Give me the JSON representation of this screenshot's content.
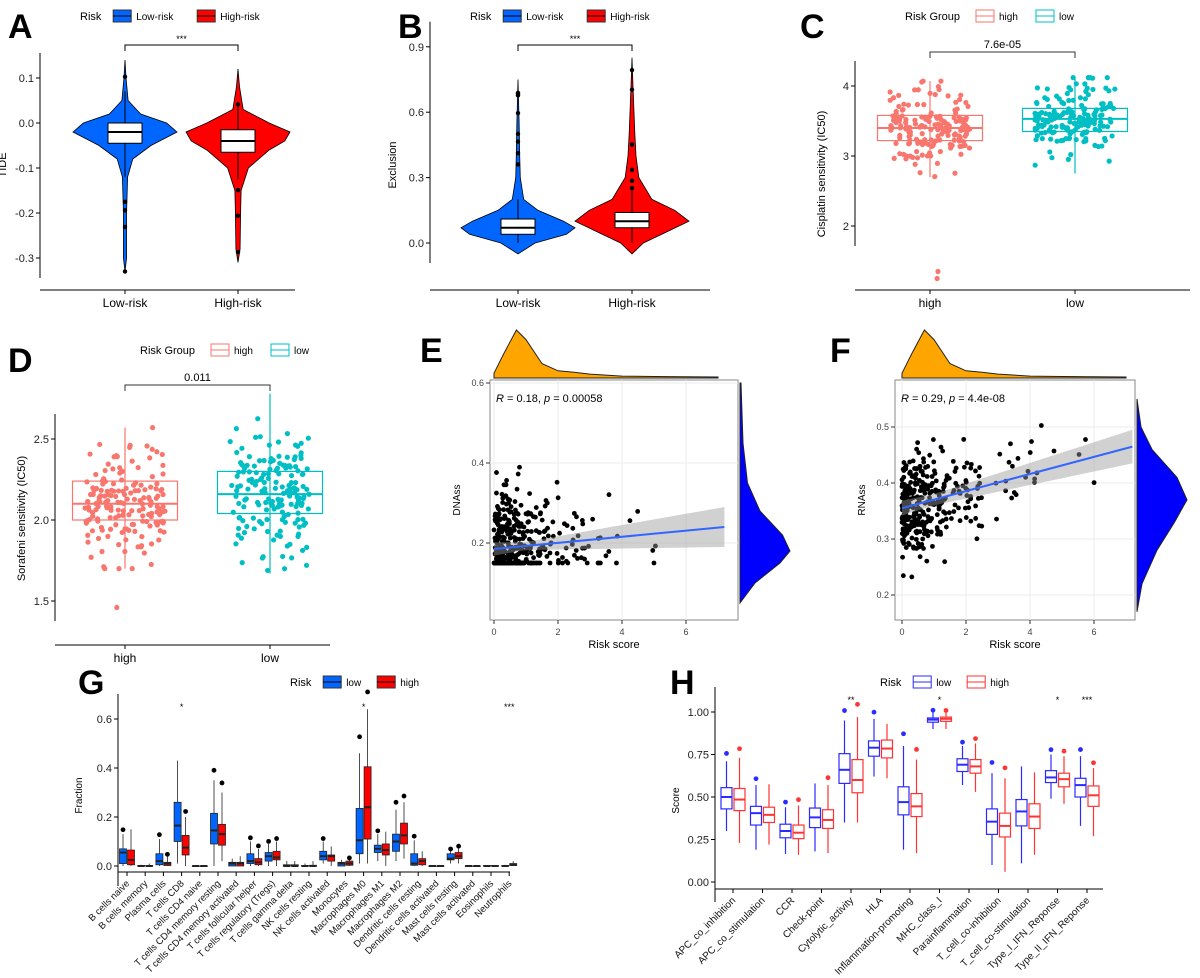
{
  "colors": {
    "low_risk": "#0066ff",
    "high_risk": "#ff0000",
    "group_high": "#f8766d",
    "group_low": "#00bfc4",
    "density_top": "#ffa500",
    "density_right": "#0000ff",
    "line": "#3366ff",
    "box_low_H": "#2b2bff",
    "box_high_H": "#ff3333"
  },
  "chart_data": [
    {
      "panel": "A",
      "type": "violin",
      "ylabel": "TIDE",
      "legend_title": "Risk",
      "legend": [
        "Low-risk",
        "High-risk"
      ],
      "categories": [
        "Low-risk",
        "High-risk"
      ],
      "yticks": [
        0.1,
        0.0,
        -0.1,
        -0.2,
        -0.3
      ],
      "yticklabels": [
        "0.1",
        "0.0",
        "-0.1",
        "-0.2",
        "-0.3"
      ],
      "significance": "***",
      "boxes": [
        {
          "min": -0.12,
          "q1": -0.045,
          "median": -0.02,
          "q3": 0.0,
          "max": 0.07
        },
        {
          "min": -0.125,
          "q1": -0.065,
          "median": -0.04,
          "q3": -0.015,
          "max": 0.04
        }
      ],
      "density": [
        [
          [
            -0.33,
            0
          ],
          [
            -0.3,
            0.03
          ],
          [
            -0.25,
            0.03
          ],
          [
            -0.2,
            0.03
          ],
          [
            -0.12,
            0.05
          ],
          [
            -0.08,
            0.15
          ],
          [
            -0.05,
            0.5
          ],
          [
            -0.02,
            1
          ],
          [
            0.0,
            0.8
          ],
          [
            0.02,
            0.3
          ],
          [
            0.05,
            0.06
          ],
          [
            0.1,
            0.02
          ],
          [
            0.14,
            0
          ]
        ],
        [
          [
            -0.31,
            0
          ],
          [
            -0.28,
            0.04
          ],
          [
            -0.2,
            0.05
          ],
          [
            -0.15,
            0.06
          ],
          [
            -0.1,
            0.2
          ],
          [
            -0.06,
            0.6
          ],
          [
            -0.04,
            0.9
          ],
          [
            -0.02,
            1
          ],
          [
            0.0,
            0.6
          ],
          [
            0.03,
            0.1
          ],
          [
            0.08,
            0.03
          ],
          [
            0.12,
            0
          ]
        ]
      ]
    },
    {
      "panel": "B",
      "type": "violin",
      "ylabel": "Exclusion",
      "legend_title": "Risk",
      "legend": [
        "Low-risk",
        "High-risk"
      ],
      "categories": [
        "Low-risk",
        "High-risk"
      ],
      "yticks": [
        0.9,
        0.6,
        0.3,
        0.0
      ],
      "yticklabels": [
        "0.9",
        "0.6",
        "0.3",
        "0.0"
      ],
      "significance": "***",
      "boxes": [
        {
          "min": 0.0,
          "q1": 0.04,
          "median": 0.07,
          "q3": 0.11,
          "max": 0.2
        },
        {
          "min": 0.0,
          "q1": 0.07,
          "median": 0.1,
          "q3": 0.14,
          "max": 0.25
        }
      ],
      "density": [
        [
          [
            -0.05,
            0
          ],
          [
            0,
            0.3
          ],
          [
            0.04,
            0.85
          ],
          [
            0.07,
            1
          ],
          [
            0.1,
            0.8
          ],
          [
            0.15,
            0.35
          ],
          [
            0.2,
            0.1
          ],
          [
            0.3,
            0.04
          ],
          [
            0.4,
            0.03
          ],
          [
            0.55,
            0.02
          ],
          [
            0.75,
            0
          ]
        ],
        [
          [
            -0.05,
            0
          ],
          [
            0,
            0.2
          ],
          [
            0.05,
            0.6
          ],
          [
            0.1,
            1
          ],
          [
            0.15,
            0.75
          ],
          [
            0.2,
            0.35
          ],
          [
            0.3,
            0.12
          ],
          [
            0.4,
            0.07
          ],
          [
            0.5,
            0.05
          ],
          [
            0.7,
            0.02
          ],
          [
            0.85,
            0
          ]
        ]
      ]
    },
    {
      "panel": "C",
      "type": "box",
      "ylabel": "Cisplatin sensitivity (IC50)",
      "legend_title": "Risk Group",
      "legend": [
        "high",
        "low"
      ],
      "categories": [
        "high",
        "low"
      ],
      "yticks": [
        4,
        3,
        2
      ],
      "yticklabels": [
        "4",
        "3",
        "2"
      ],
      "pvalue": "7.6e-05",
      "boxes": [
        {
          "min": 2.7,
          "q1": 3.22,
          "median": 3.4,
          "q3": 3.58,
          "max": 4.07,
          "outliers": [
            1.25,
            1.35
          ]
        },
        {
          "min": 2.75,
          "q1": 3.35,
          "median": 3.53,
          "q3": 3.68,
          "max": 4.12,
          "outliers": []
        }
      ]
    },
    {
      "panel": "D",
      "type": "box",
      "ylabel": "Sorafeni sensitivity (IC50)",
      "legend_title": "Risk Group",
      "legend": [
        "high",
        "low"
      ],
      "categories": [
        "high",
        "low"
      ],
      "yticks": [
        2.5,
        2.0,
        1.5
      ],
      "yticklabels": [
        "2.5",
        "2.0",
        "1.5"
      ],
      "pvalue": "0.011",
      "boxes": [
        {
          "min": 1.7,
          "q1": 2.0,
          "median": 2.1,
          "q3": 2.24,
          "max": 2.57,
          "outliers": [
            1.46
          ]
        },
        {
          "min": 1.67,
          "q1": 2.04,
          "median": 2.16,
          "q3": 2.3,
          "max": 2.78,
          "outliers": []
        }
      ]
    },
    {
      "panel": "E",
      "type": "scatter",
      "xlabel": "Risk score",
      "ylabel": "DNAss",
      "annotation_r": "R = 0.18, ",
      "annotation_p": "p = 0.00058",
      "xticks": [
        0,
        2,
        4,
        6
      ],
      "xticklabels": [
        "0",
        "2",
        "4",
        "6"
      ],
      "yticks": [
        0.6,
        0.4,
        0.2
      ],
      "yticklabels": [
        "0.6",
        "0.4",
        "0.2"
      ],
      "fit": {
        "x": [
          0,
          7.2
        ],
        "y": [
          0.185,
          0.24
        ],
        "ci": [
          0.01,
          0.05
        ]
      },
      "top_density": [
        [
          0,
          0.1
        ],
        [
          0.3,
          0.5
        ],
        [
          0.7,
          1
        ],
        [
          1,
          0.8
        ],
        [
          1.5,
          0.3
        ],
        [
          2,
          0.15
        ],
        [
          2.5,
          0.12
        ],
        [
          3,
          0.08
        ],
        [
          4,
          0.04
        ],
        [
          5,
          0.03
        ],
        [
          7,
          0.02
        ]
      ],
      "right_density": [
        [
          0.05,
          0
        ],
        [
          0.1,
          0.3
        ],
        [
          0.15,
          0.8
        ],
        [
          0.18,
          1
        ],
        [
          0.22,
          0.85
        ],
        [
          0.28,
          0.4
        ],
        [
          0.35,
          0.15
        ],
        [
          0.45,
          0.06
        ],
        [
          0.6,
          0.02
        ]
      ]
    },
    {
      "panel": "F",
      "type": "scatter",
      "xlabel": "Risk score",
      "ylabel": "RNAss",
      "annotation_r": "R = 0.29, ",
      "annotation_p": "p = 4.4e-08",
      "xticks": [
        0,
        2,
        4,
        6
      ],
      "xticklabels": [
        "0",
        "2",
        "4",
        "6"
      ],
      "yticks": [
        0.5,
        0.4,
        0.3,
        0.2
      ],
      "yticklabels": [
        "0.5",
        "0.4",
        "0.3",
        "0.2"
      ],
      "fit": {
        "x": [
          0,
          7.2
        ],
        "y": [
          0.355,
          0.465
        ],
        "ci": [
          0.01,
          0.03
        ]
      },
      "top_density": [
        [
          0,
          0.1
        ],
        [
          0.3,
          0.5
        ],
        [
          0.7,
          1
        ],
        [
          1,
          0.8
        ],
        [
          1.5,
          0.3
        ],
        [
          2,
          0.15
        ],
        [
          2.5,
          0.12
        ],
        [
          3,
          0.08
        ],
        [
          4,
          0.04
        ],
        [
          5,
          0.03
        ],
        [
          7,
          0.02
        ]
      ],
      "right_density": [
        [
          0.17,
          0
        ],
        [
          0.22,
          0.1
        ],
        [
          0.28,
          0.4
        ],
        [
          0.33,
          0.75
        ],
        [
          0.37,
          1
        ],
        [
          0.41,
          0.8
        ],
        [
          0.46,
          0.3
        ],
        [
          0.5,
          0.08
        ],
        [
          0.55,
          0
        ]
      ]
    },
    {
      "panel": "G",
      "type": "box",
      "ylabel": "Fraction",
      "legend_title": "Risk",
      "legend": [
        "low",
        "high"
      ],
      "yticks": [
        0.6,
        0.4,
        0.2,
        0.0
      ],
      "yticklabels": [
        "0.6",
        "0.4",
        "0.2",
        "0.0"
      ],
      "categories": [
        "B cells naive",
        "B cells memory",
        "Plasma cells",
        "T cells CD8",
        "T cells CD4 naive",
        "T cells CD4 memory resting",
        "T cells CD4 memory activated",
        "T cells follicular helper",
        "T cells regulatory (Tregs)",
        "T cells gamma delta",
        "NK cells resting",
        "NK cells activated",
        "Monocytes",
        "Macrophages M0",
        "Macrophages M1",
        "Macrophages M2",
        "Dendritic cells resting",
        "Dendritic cells activated",
        "Mast cells resting",
        "Mast cells activated",
        "Eosinophils",
        "Neutrophils"
      ],
      "significance": [
        "",
        "",
        "",
        "*",
        "",
        "",
        "",
        "",
        "",
        "",
        "",
        "",
        "",
        "*",
        "",
        "",
        "",
        "",
        "",
        "",
        "",
        "***"
      ],
      "low": [
        [
          0,
          0.01,
          0.055,
          0.07,
          0.13
        ],
        [
          0,
          0,
          0,
          0.002,
          0.005
        ],
        [
          0,
          0.005,
          0.02,
          0.05,
          0.11
        ],
        [
          0.01,
          0.1,
          0.165,
          0.26,
          0.43
        ],
        [
          0,
          0,
          0,
          0,
          0
        ],
        [
          0,
          0.09,
          0.145,
          0.215,
          0.35
        ],
        [
          0,
          0,
          0.01,
          0.015,
          0.03
        ],
        [
          0,
          0.01,
          0.02,
          0.05,
          0.1
        ],
        [
          0,
          0.02,
          0.04,
          0.055,
          0.09
        ],
        [
          0,
          0,
          0,
          0.005,
          0.02
        ],
        [
          0,
          0,
          0,
          0.002,
          0.01
        ],
        [
          0.01,
          0.025,
          0.04,
          0.06,
          0.1
        ],
        [
          0,
          0,
          0.01,
          0.015,
          0.025
        ],
        [
          0.01,
          0.05,
          0.105,
          0.235,
          0.46
        ],
        [
          0.02,
          0.055,
          0.07,
          0.085,
          0.13
        ],
        [
          0.02,
          0.06,
          0.1,
          0.13,
          0.23
        ],
        [
          0,
          0.003,
          0.01,
          0.05,
          0.105
        ],
        [
          0,
          0,
          0,
          0,
          0
        ],
        [
          0.01,
          0.025,
          0.03,
          0.05,
          0.065
        ],
        [
          0,
          0,
          0,
          0,
          0
        ],
        [
          0,
          0,
          0,
          0.002,
          0.004
        ],
        [
          0,
          0,
          0,
          0.002,
          0.005
        ]
      ],
      "high": [
        [
          0,
          0.005,
          0.025,
          0.065,
          0.15
        ],
        [
          0,
          0,
          0,
          0.002,
          0.01
        ],
        [
          0,
          0.002,
          0.01,
          0.015,
          0.04
        ],
        [
          0,
          0.045,
          0.075,
          0.125,
          0.2
        ],
        [
          0,
          0,
          0,
          0,
          0
        ],
        [
          0.02,
          0.085,
          0.13,
          0.17,
          0.3
        ],
        [
          0,
          0,
          0.01,
          0.015,
          0.04
        ],
        [
          0,
          0.005,
          0.015,
          0.03,
          0.07
        ],
        [
          0,
          0.025,
          0.035,
          0.06,
          0.1
        ],
        [
          0,
          0,
          0,
          0.005,
          0.02
        ],
        [
          0,
          0,
          0,
          0.003,
          0.02
        ],
        [
          0,
          0.02,
          0.04,
          0.045,
          0.08
        ],
        [
          0,
          0.003,
          0.01,
          0.02,
          0.03
        ],
        [
          0.01,
          0.11,
          0.24,
          0.405,
          0.64
        ],
        [
          0,
          0.045,
          0.065,
          0.09,
          0.14
        ],
        [
          0.03,
          0.09,
          0.125,
          0.175,
          0.26
        ],
        [
          0,
          0.005,
          0.02,
          0.03,
          0.06
        ],
        [
          0,
          0,
          0,
          0,
          0
        ],
        [
          0.01,
          0.03,
          0.04,
          0.055,
          0.075
        ],
        [
          0,
          0,
          0,
          0,
          0
        ],
        [
          0,
          0,
          0,
          0.002,
          0.004
        ],
        [
          0,
          0.002,
          0.005,
          0.01,
          0.02
        ]
      ]
    },
    {
      "panel": "H",
      "type": "box",
      "ylabel": "Score",
      "legend_title": "Risk",
      "legend": [
        "low",
        "high"
      ],
      "yticks": [
        1.0,
        0.75,
        0.5,
        0.25,
        0.0
      ],
      "yticklabels": [
        "1.00",
        "0.75",
        "0.50",
        "0.25",
        "0.00"
      ],
      "categories": [
        "APC_co_inhibition",
        "APC_co_stimulation",
        "CCR",
        "Check-point",
        "Cytolytic_activity",
        "HLA",
        "Inflammation-promoting",
        "MHC_class_I",
        "Parainflammation",
        "T_cell_co-inhibition",
        "T_cell_co-stimulation",
        "Type_I_IFN_Reponse",
        "Type_II_IFN_Reponse"
      ],
      "significance": [
        "",
        "",
        "",
        "",
        "**",
        "",
        "",
        "*",
        "",
        "",
        "",
        "*",
        "***"
      ],
      "low": [
        [
          0.3,
          0.43,
          0.5,
          0.555,
          0.71
        ],
        [
          0.19,
          0.335,
          0.405,
          0.445,
          0.57
        ],
        [
          0.165,
          0.26,
          0.3,
          0.34,
          0.44
        ],
        [
          0.18,
          0.32,
          0.38,
          0.435,
          0.58
        ],
        [
          0.35,
          0.58,
          0.66,
          0.755,
          0.95
        ],
        [
          0.62,
          0.74,
          0.79,
          0.83,
          0.96
        ],
        [
          0.19,
          0.395,
          0.47,
          0.56,
          0.8
        ],
        [
          0.9,
          0.94,
          0.955,
          0.965,
          1.0
        ],
        [
          0.57,
          0.65,
          0.69,
          0.725,
          0.8
        ],
        [
          0.1,
          0.28,
          0.355,
          0.43,
          0.64
        ],
        [
          0.11,
          0.33,
          0.415,
          0.485,
          0.68
        ],
        [
          0.49,
          0.585,
          0.615,
          0.655,
          0.75
        ],
        [
          0.33,
          0.5,
          0.57,
          0.61,
          0.74
        ]
      ],
      "high": [
        [
          0.23,
          0.42,
          0.485,
          0.55,
          0.73
        ],
        [
          0.22,
          0.35,
          0.395,
          0.44,
          0.575
        ],
        [
          0.16,
          0.255,
          0.29,
          0.335,
          0.45
        ],
        [
          0.17,
          0.315,
          0.365,
          0.425,
          0.57
        ],
        [
          0.35,
          0.525,
          0.6,
          0.72,
          0.97
        ],
        [
          0.61,
          0.73,
          0.785,
          0.835,
          0.93
        ],
        [
          0.17,
          0.385,
          0.445,
          0.52,
          0.72
        ],
        [
          0.9,
          0.945,
          0.96,
          0.97,
          1.0
        ],
        [
          0.53,
          0.64,
          0.68,
          0.72,
          0.815
        ],
        [
          0.06,
          0.265,
          0.33,
          0.405,
          0.61
        ],
        [
          0.16,
          0.315,
          0.385,
          0.46,
          0.645
        ],
        [
          0.46,
          0.56,
          0.605,
          0.64,
          0.74
        ],
        [
          0.27,
          0.445,
          0.51,
          0.565,
          0.67
        ]
      ]
    }
  ]
}
